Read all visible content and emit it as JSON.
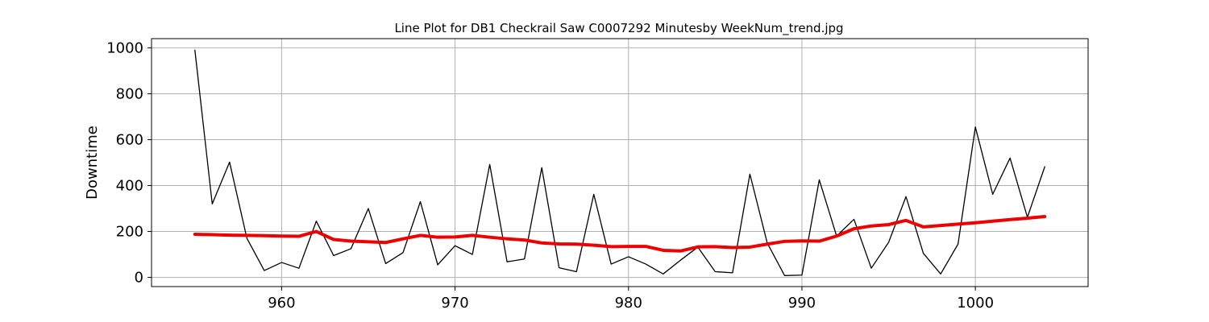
{
  "chart_data": {
    "type": "line",
    "title": "Line Plot for DB1 Checkrail Saw C0007292 Minutesby WeekNum_trend.jpg",
    "xlabel": "",
    "ylabel": "Downtime",
    "xlim": [
      952.5,
      1006.5
    ],
    "ylim": [
      -40,
      1040
    ],
    "xticks": [
      960,
      970,
      980,
      990,
      1000
    ],
    "yticks": [
      0,
      200,
      400,
      600,
      800,
      1000
    ],
    "grid": true,
    "x": [
      955,
      956,
      957,
      958,
      959,
      960,
      961,
      962,
      963,
      964,
      965,
      966,
      967,
      968,
      969,
      970,
      971,
      972,
      973,
      974,
      975,
      976,
      977,
      978,
      979,
      980,
      981,
      982,
      983,
      984,
      985,
      986,
      987,
      988,
      989,
      990,
      991,
      992,
      993,
      994,
      995,
      996,
      997,
      998,
      999,
      1000,
      1001,
      1002,
      1003,
      1004
    ],
    "series": [
      {
        "values": [
          990,
          320,
          502,
          170,
          30,
          65,
          40,
          245,
          95,
          125,
          300,
          60,
          108,
          330,
          55,
          138,
          100,
          492,
          68,
          80,
          478,
          42,
          25,
          362,
          58,
          90,
          58,
          15,
          75,
          132,
          25,
          20,
          450,
          150,
          8,
          10,
          425,
          180,
          253,
          40,
          153,
          352,
          105,
          15,
          145,
          655,
          362,
          520,
          262,
          482
        ],
        "color": "#000000"
      },
      {
        "values": [
          188,
          186,
          184,
          183,
          182,
          180,
          179,
          200,
          165,
          158,
          155,
          152,
          168,
          183,
          175,
          176,
          183,
          175,
          168,
          163,
          150,
          146,
          145,
          140,
          134,
          135,
          135,
          118,
          115,
          133,
          134,
          130,
          132,
          145,
          157,
          159,
          158,
          180,
          212,
          224,
          230,
          248,
          220,
          226,
          232,
          238,
          245,
          252,
          258,
          265
        ],
        "color": "#ee0000"
      }
    ]
  }
}
